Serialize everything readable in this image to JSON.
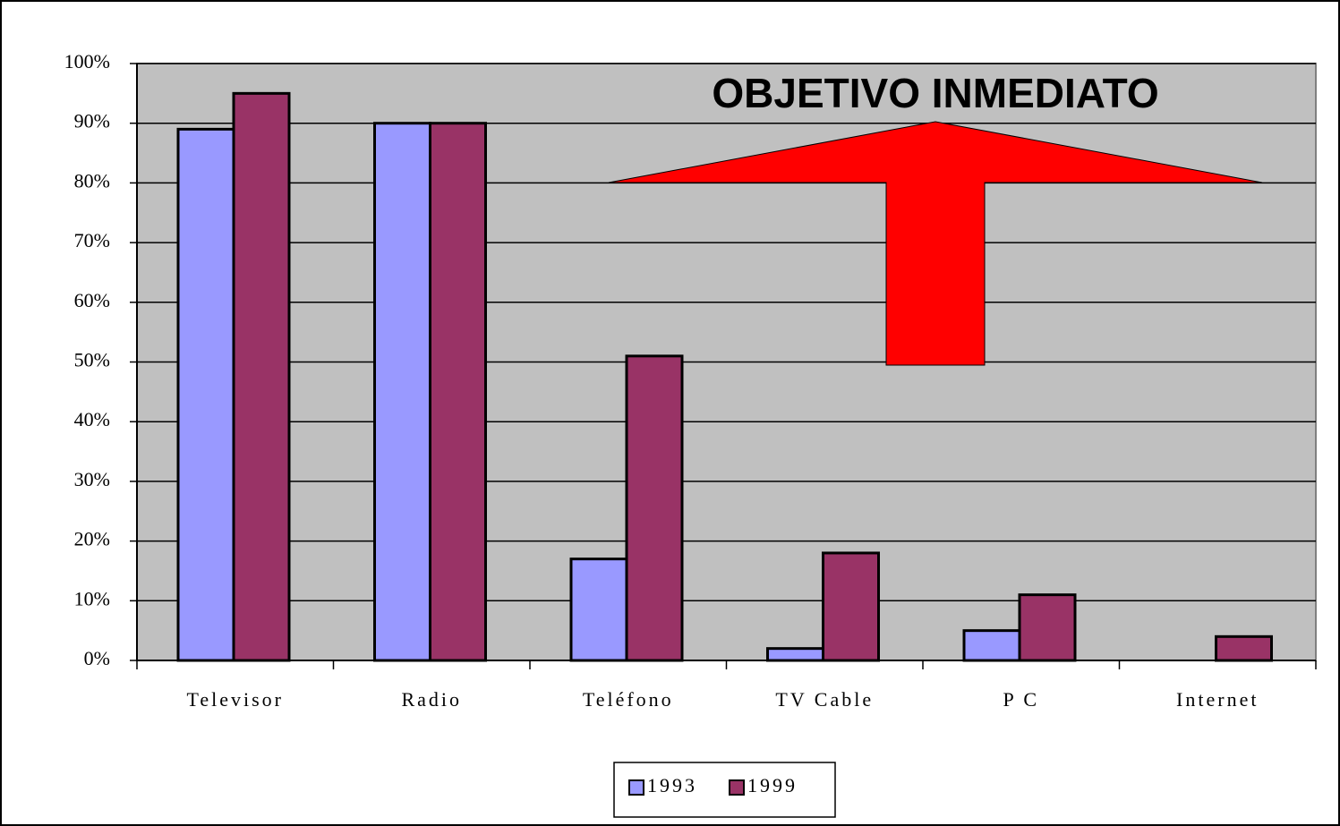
{
  "chart_data": {
    "type": "bar",
    "annotation": "OBJETIVO INMEDIATO",
    "categories": [
      "Televisor",
      "Radio",
      "Teléfono",
      "TV Cable",
      "P C",
      "Internet"
    ],
    "series": [
      {
        "name": "1993",
        "color": "#9999ff",
        "values": [
          89,
          90,
          17,
          2,
          5,
          0
        ]
      },
      {
        "name": "1999",
        "color": "#993366",
        "values": [
          95,
          90,
          51,
          18,
          11,
          4
        ]
      }
    ],
    "ylim": [
      0,
      100
    ],
    "yticks": [
      {
        "value": 0,
        "label": "0%"
      },
      {
        "value": 10,
        "label": "10%"
      },
      {
        "value": 20,
        "label": "20%"
      },
      {
        "value": 30,
        "label": "30%"
      },
      {
        "value": 40,
        "label": "40%"
      },
      {
        "value": 50,
        "label": "50%"
      },
      {
        "value": 60,
        "label": "60%"
      },
      {
        "value": 70,
        "label": "70%"
      },
      {
        "value": 80,
        "label": "80%"
      },
      {
        "value": 90,
        "label": "90%"
      },
      {
        "value": 100,
        "label": "100%"
      }
    ],
    "grid": true,
    "legend": "bottom",
    "plot_background": "#c0c0c0"
  }
}
